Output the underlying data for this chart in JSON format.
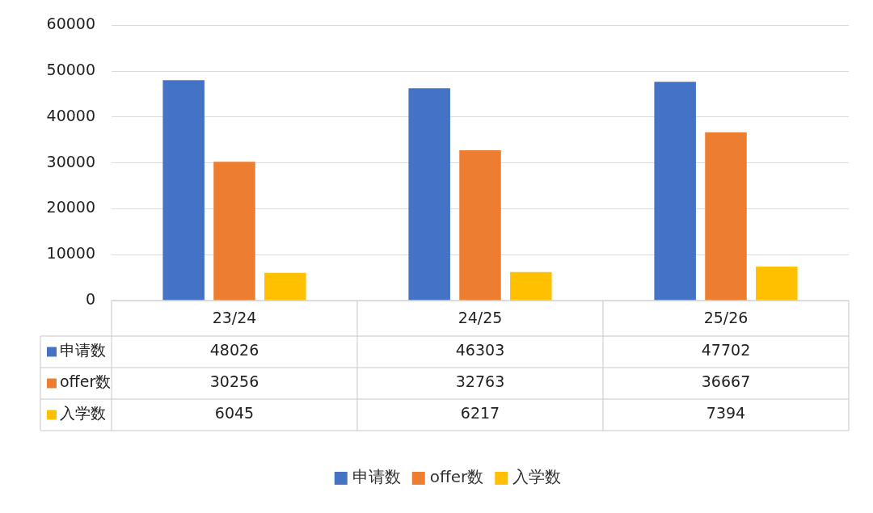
{
  "chart_data": {
    "type": "bar",
    "categories": [
      "23/24",
      "24/25",
      "25/26"
    ],
    "series": [
      {
        "name": "申请数",
        "color": "#4472c4",
        "values": [
          48026,
          46303,
          47702
        ]
      },
      {
        "name": "offer数",
        "color": "#ed7d31",
        "values": [
          30256,
          32763,
          36667
        ]
      },
      {
        "name": "入学数",
        "color": "#ffc000",
        "values": [
          6045,
          6217,
          7394
        ]
      }
    ],
    "ylim": [
      0,
      60000
    ],
    "yticks": [
      0,
      10000,
      20000,
      30000,
      40000,
      50000,
      60000
    ],
    "grid": "y",
    "legend": "bottom",
    "data_labels": true
  }
}
